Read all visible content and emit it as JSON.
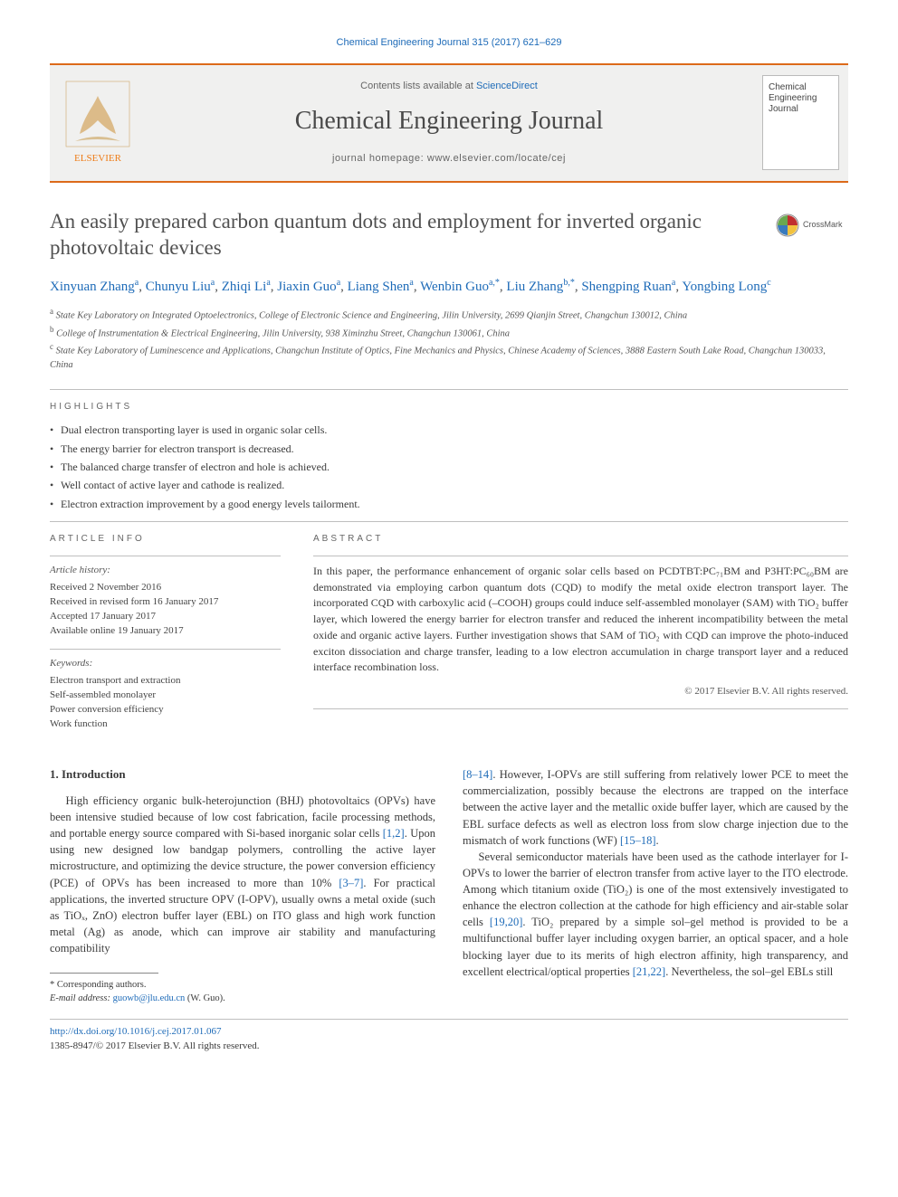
{
  "running_head": {
    "journal_link_text": "Chemical Engineering Journal 315 (2017) 621–629",
    "journal_link_color": "#1e6bb8"
  },
  "banner": {
    "availability_prefix": "Contents lists available at ",
    "availability_link": "ScienceDirect",
    "journal_name": "Chemical Engineering Journal",
    "homepage_label": "journal homepage: www.elsevier.com/locate/cej",
    "bar_color": "#dc6a1a",
    "background_color": "#f0f0ef",
    "cover": {
      "line1": "Chemical",
      "line2": "Engineering",
      "line3": "Journal"
    },
    "logo": {
      "orange": "#ee7d1a",
      "text": "ELSEVIER",
      "text_color": "#ee7d1a"
    }
  },
  "crossmark_label": "CrossMark",
  "title": "An easily prepared carbon quantum dots and employment for inverted organic photovoltaic devices",
  "authors_html_parts": [
    {
      "name": "Xinyuan Zhang",
      "sup": "a"
    },
    {
      "name": "Chunyu Liu",
      "sup": "a"
    },
    {
      "name": "Zhiqi Li",
      "sup": "a"
    },
    {
      "name": "Jiaxin Guo",
      "sup": "a"
    },
    {
      "name": "Liang Shen",
      "sup": "a"
    },
    {
      "name": "Wenbin Guo",
      "sup": "a,*"
    },
    {
      "name": "Liu Zhang",
      "sup": "b,*"
    },
    {
      "name": "Shengping Ruan",
      "sup": "a"
    },
    {
      "name": "Yongbing Long",
      "sup": "c"
    }
  ],
  "affiliations": [
    {
      "sup": "a",
      "text": "State Key Laboratory on Integrated Optoelectronics, College of Electronic Science and Engineering, Jilin University, 2699 Qianjin Street, Changchun 130012, China"
    },
    {
      "sup": "b",
      "text": "College of Instrumentation & Electrical Engineering, Jilin University, 938 Ximinzhu Street, Changchun 130061, China"
    },
    {
      "sup": "c",
      "text": "State Key Laboratory of Luminescence and Applications, Changchun Institute of Optics, Fine Mechanics and Physics, Chinese Academy of Sciences, 3888 Eastern South Lake Road, Changchun 130033, China"
    }
  ],
  "highlights": {
    "label": "HIGHLIGHTS",
    "items": [
      "Dual electron transporting layer is used in organic solar cells.",
      "The energy barrier for electron transport is decreased.",
      "The balanced charge transfer of electron and hole is achieved.",
      "Well contact of active layer and cathode is realized.",
      "Electron extraction improvement by a good energy levels tailorment."
    ]
  },
  "info": {
    "label": "ARTICLE INFO",
    "history_heading": "Article history:",
    "history": [
      "Received 2 November 2016",
      "Received in revised form 16 January 2017",
      "Accepted 17 January 2017",
      "Available online 19 January 2017"
    ],
    "keywords_heading": "Keywords:",
    "keywords": [
      "Electron transport and extraction",
      "Self-assembled monolayer",
      "Power conversion efficiency",
      "Work function"
    ]
  },
  "abstract": {
    "label": "ABSTRACT",
    "text": "In this paper, the performance enhancement of organic solar cells based on PCDTBT:PC₇₁BM and P3HT:PC₆₀BM are demonstrated via employing carbon quantum dots (CQD) to modify the metal oxide electron transport layer. The incorporated CQD with carboxylic acid (–COOH) groups could induce self-assembled monolayer (SAM) with TiO₂ buffer layer, which lowered the energy barrier for electron transfer and reduced the inherent incompatibility between the metal oxide and organic active layers. Further investigation shows that SAM of TiO₂ with CQD can improve the photo-induced exciton dissociation and charge transfer, leading to a low electron accumulation in charge transport layer and a reduced interface recombination loss.",
    "copyright": "© 2017 Elsevier B.V. All rights reserved."
  },
  "body": {
    "heading": "1. Introduction",
    "para1_pre": "High efficiency organic bulk-heterojunction (BHJ) photovoltaics (OPVs) have been intensive studied because of low cost fabrication, facile processing methods, and portable energy source compared with Si-based inorganic solar cells ",
    "ref1": "[1,2]",
    "para1_mid": ". Upon using new designed low bandgap polymers, controlling the active layer microstructure, and optimizing the device structure, the power conversion efficiency (PCE) of OPVs has been increased to more than 10% ",
    "ref2": "[3–7]",
    "para1_post": ". For practical applications, the inverted structure OPV (I-OPV), usually owns a metal oxide (such as TiOₓ, ZnO) electron buffer layer (EBL) on ITO glass and high work function metal (Ag) as anode, which can improve air stability and manufacturing compatibility",
    "ref3": "[8–14]",
    "para2_mid1": ". However, I-OPVs are still suffering from relatively lower PCE to meet the commercialization, possibly because the electrons are trapped on the interface between the active layer and the metallic oxide buffer layer, which are caused by the EBL surface defects as well as electron loss from slow charge injection due to the mismatch of work functions (WF) ",
    "ref4": "[15–18]",
    "para2_post1": ".",
    "para3_pre": "Several semiconductor materials have been used as the cathode interlayer for I-OPVs to lower the barrier of electron transfer from active layer to the ITO electrode. Among which titanium oxide (TiO₂) is one of the most extensively investigated to enhance the electron collection at the cathode for high efficiency and air-stable solar cells ",
    "ref5": "[19,20]",
    "para3_mid": ". TiO₂ prepared by a simple sol–gel method is provided to be a multifunctional buffer layer including oxygen barrier, an optical spacer, and a hole blocking layer due to its merits of high electron affinity, high transparency, and excellent electrical/optical properties ",
    "ref6": "[21,22]",
    "para3_post": ". Nevertheless, the sol–gel EBLs still"
  },
  "footnotes": {
    "corr_label": "* Corresponding authors.",
    "email_label": "E-mail address:",
    "email": "guowb@jlu.edu.cn",
    "email_after": " (W. Guo)."
  },
  "doi": {
    "url_text": "http://dx.doi.org/10.1016/j.cej.2017.01.067",
    "issn_line": "1385-8947/© 2017 Elsevier B.V. All rights reserved."
  },
  "colors": {
    "link": "#1e6bb8",
    "rule": "#bfbfbf",
    "text": "#3a3a3a"
  }
}
